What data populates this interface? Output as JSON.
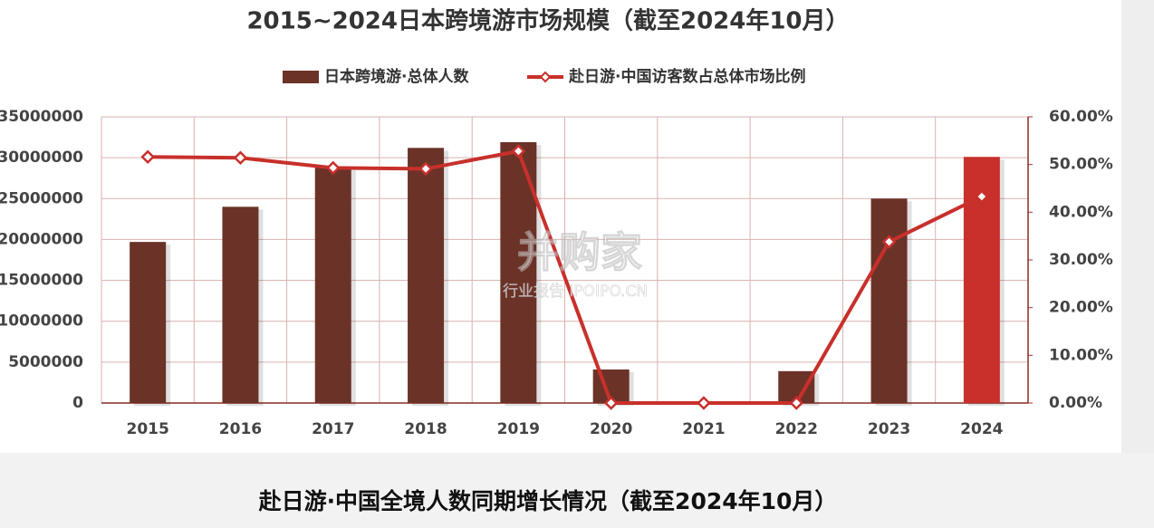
{
  "chart_data": {
    "type": "bar-line",
    "title": "2015~2024日本跨境游市场规模（截至2024年10月）",
    "categories": [
      "2015",
      "2016",
      "2017",
      "2018",
      "2019",
      "2020",
      "2021",
      "2022",
      "2023",
      "2024"
    ],
    "series": [
      {
        "name": "日本跨境游·总体人数",
        "type": "bar",
        "color": "#6b3228",
        "bar_colors": [
          "#6b3228",
          "#6b3228",
          "#6b3228",
          "#6b3228",
          "#6b3228",
          "#6b3228",
          "#6b3228",
          "#6b3228",
          "#6b3228",
          "#c8302b"
        ],
        "values": [
          19700000,
          24000000,
          28800000,
          31200000,
          31900000,
          4100000,
          0,
          3900000,
          25000000,
          30100000
        ]
      },
      {
        "name": "赴日游·中国访客数占总体市场比例",
        "type": "line",
        "axis": "y2",
        "color": "#c8302b",
        "values": [
          51.6,
          51.4,
          49.3,
          49.1,
          52.8,
          0,
          0,
          0,
          33.8,
          43.3
        ]
      }
    ],
    "ylim": [
      0,
      35000000
    ],
    "yticks": [
      0,
      5000000,
      10000000,
      15000000,
      20000000,
      25000000,
      30000000,
      35000000
    ],
    "y2lim": [
      0,
      60
    ],
    "y2ticks": [
      {
        "value": 0,
        "label": "0.00%"
      },
      {
        "value": 10,
        "label": "10.00%"
      },
      {
        "value": 20,
        "label": "20.00%"
      },
      {
        "value": 30,
        "label": "30.00%"
      },
      {
        "value": 40,
        "label": "40.00%"
      },
      {
        "value": 50,
        "label": "50.00%"
      },
      {
        "value": 60,
        "label": "60.00%"
      }
    ],
    "grid": true,
    "legend": "top"
  },
  "watermark": {
    "brand": "并购家",
    "caption": "行业报告 IPOIPO.CN"
  },
  "next_title": "赴日游·中国全境人数同期增长情况（截至2024年10月）"
}
